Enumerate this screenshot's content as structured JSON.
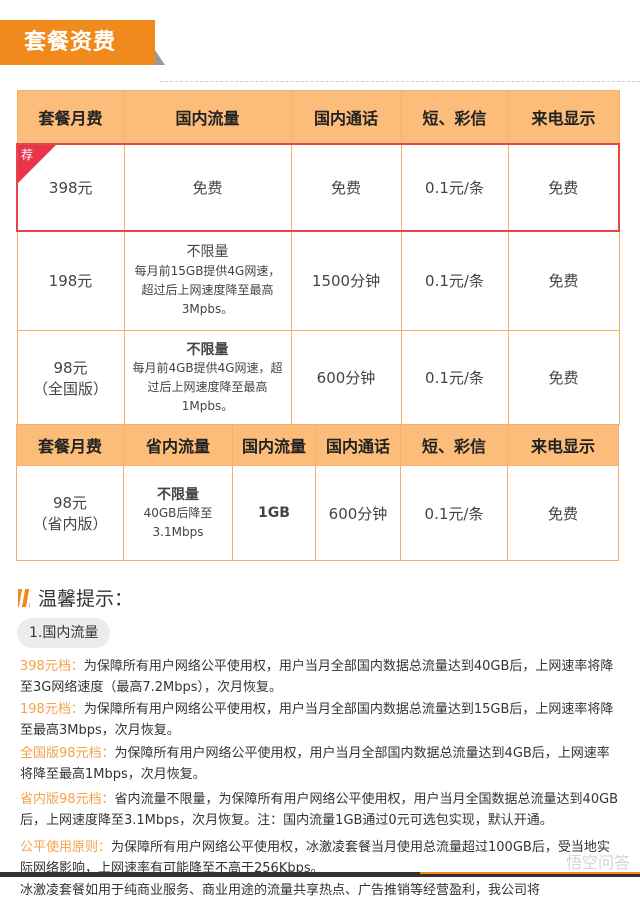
{
  "title": "套餐资费",
  "table1": {
    "headers": [
      "套餐月费",
      "国内流量",
      "国内通话",
      "短、彩信",
      "来电显示"
    ],
    "recommend_badge": "荐",
    "rows": [
      {
        "fee": "398元",
        "data_title": "免费",
        "data_desc": "",
        "calls": "免费",
        "sms": "0.1元/条",
        "caller_id": "免费"
      },
      {
        "fee": "198元",
        "data_title": "不限量",
        "data_desc": "每月前15GB提供4G网速，超过后上网速度降至最高3Mpbs。",
        "calls": "1500分钟",
        "sms": "0.1元/条",
        "caller_id": "免费"
      },
      {
        "fee": "98元",
        "fee_sub": "（全国版）",
        "data_title": "不限量",
        "data_desc": "每月前4GB提供4G网速，超过后上网速度降至最高1Mpbs。",
        "calls": "600分钟",
        "sms": "0.1元/条",
        "caller_id": "免费"
      }
    ]
  },
  "table2": {
    "headers": [
      "套餐月费",
      "省内流量",
      "国内流量",
      "国内通话",
      "短、彩信",
      "来电显示"
    ],
    "row": {
      "fee": "98元",
      "fee_sub": "（省内版）",
      "prov_title": "不限量",
      "prov_desc": "40GB后降至3.1Mbps",
      "national": "1GB",
      "calls": "600分钟",
      "sms": "0.1元/条",
      "caller_id": "免费"
    }
  },
  "tips": {
    "heading": "温馨提示：",
    "section": "1.国内流量",
    "notes": [
      {
        "label": "398元档：",
        "text": "为保障所有用户网络公平使用权，用户当月全部国内数据总流量达到40GB后，上网速率将降至3G网络速度（最高7.2Mbps），次月恢复。"
      },
      {
        "label": "198元档：",
        "text": "为保障所有用户网络公平使用权，用户当月全部国内数据总流量达到15GB后，上网速率将降至最高3Mbps，次月恢复。"
      },
      {
        "label": "全国版98元档：",
        "text": "为保障所有用户网络公平使用权，用户当月全部国内数据总流量达到4GB后，上网速率将降至最高1Mbps，次月恢复。"
      },
      {
        "label": "省内版98元档：",
        "text": "省内流量不限量，为保障所有用户网络公平使用权，用户当月全国数据总流量达到40GB后，上网速度降至3.1Mbps，次月恢复。注：国内流量1GB通过0元可选包实现，默认开通。"
      },
      {
        "label": "公平使用原则：",
        "text": "为保障所有用户网络公平使用权，冰激凌套餐当月使用总流量超过100GB后，受当地实际网络影响，上网速率有可能降至不高于256Kbps。"
      }
    ],
    "trailing": "冰激凌套餐如用于纯商业服务、商业用途的流量共享热点、广告推销等经营盈利，我公司将"
  },
  "watermark": "悟空问答",
  "colors": {
    "accent": "#f08a1c",
    "header_bg": "#fbbd79",
    "recommend": "#e8454b"
  }
}
